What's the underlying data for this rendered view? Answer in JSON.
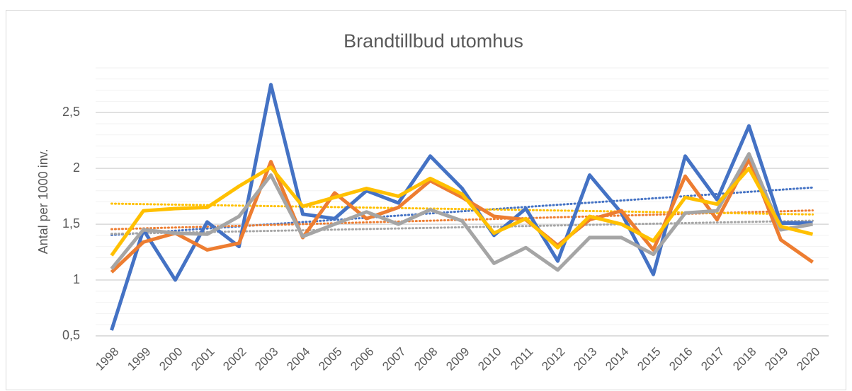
{
  "chart_data": {
    "type": "line",
    "title": "Brandtillbud utomhus",
    "y_label": "Antal per 1000 inv.",
    "categories": [
      "1998",
      "1999",
      "2000",
      "2001",
      "2002",
      "2003",
      "2004",
      "2005",
      "2006",
      "2007",
      "2008",
      "2009",
      "2010",
      "2011",
      "2012",
      "2013",
      "2014",
      "2015",
      "2016",
      "2017",
      "2018",
      "2019",
      "2020"
    ],
    "series": [
      {
        "color": "#4472c4",
        "values": [
          0.55,
          1.45,
          1.0,
          1.52,
          1.3,
          2.75,
          1.59,
          1.55,
          1.8,
          1.69,
          2.11,
          1.82,
          1.4,
          1.64,
          1.17,
          1.94,
          1.6,
          1.05,
          2.11,
          1.72,
          2.38,
          1.51,
          1.51
        ]
      },
      {
        "color": "#ed7d31",
        "values": [
          1.07,
          1.34,
          1.42,
          1.27,
          1.33,
          2.06,
          1.38,
          1.78,
          1.55,
          1.65,
          1.89,
          1.74,
          1.57,
          1.54,
          1.31,
          1.54,
          1.62,
          1.27,
          1.93,
          1.54,
          2.08,
          1.36,
          1.16
        ]
      },
      {
        "color": "#a5a5a5",
        "values": [
          1.1,
          1.45,
          1.42,
          1.41,
          1.57,
          1.94,
          1.39,
          1.5,
          1.61,
          1.5,
          1.63,
          1.53,
          1.15,
          1.29,
          1.09,
          1.38,
          1.38,
          1.23,
          1.6,
          1.62,
          2.13,
          1.45,
          1.5
        ]
      },
      {
        "color": "#ffc000",
        "values": [
          1.22,
          1.62,
          1.64,
          1.65,
          1.84,
          2.01,
          1.66,
          1.74,
          1.82,
          1.75,
          1.91,
          1.77,
          1.42,
          1.55,
          1.29,
          1.57,
          1.5,
          1.35,
          1.74,
          1.68,
          2.0,
          1.48,
          1.41
        ]
      }
    ],
    "ylim": [
      0.5,
      2.9
    ],
    "yticks": [
      {
        "value": 0.5,
        "label": "0,5"
      },
      1,
      {
        "value": 1.5,
        "label": "1,5"
      },
      2,
      {
        "value": 2.5,
        "label": "2,5"
      }
    ],
    "grid": true,
    "minor_grid": true,
    "trendline": true
  }
}
